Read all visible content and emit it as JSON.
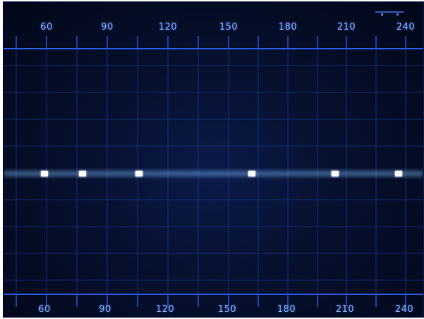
{
  "scale": {
    "top_ticks": [
      "60",
      "90",
      "120",
      "150",
      "180",
      "210",
      "240"
    ],
    "bottom_ticks": [
      "60",
      "90",
      "120",
      "150",
      "180",
      "210",
      "240"
    ]
  },
  "colors": {
    "background": "#050d2a",
    "grid": "#1b3a9a",
    "grid_bright": "#2b58e0",
    "wave_core": "#e8f6ff",
    "wave_mid": "#7fc0ff",
    "wave_dim": "#2a6fd6"
  },
  "icons": {
    "hud": "status-indicator-icon"
  }
}
